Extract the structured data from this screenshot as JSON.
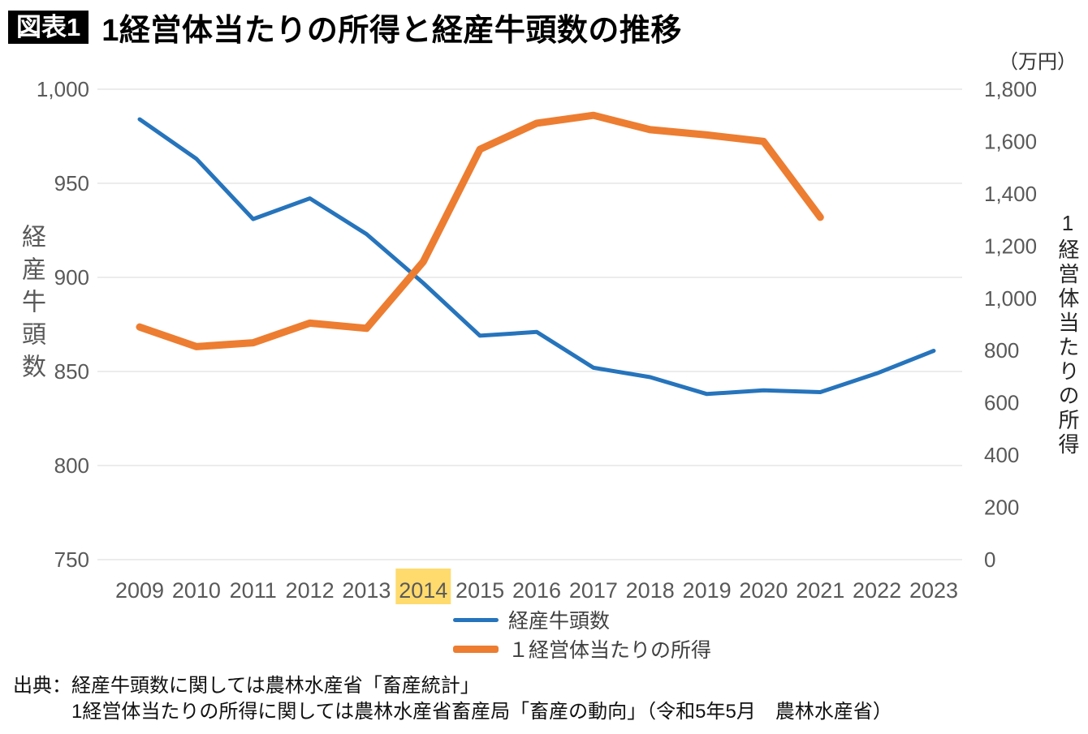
{
  "header": {
    "badge": "図表1",
    "title": "1経営体当たりの所得と経産牛頭数の推移"
  },
  "chart_data": {
    "type": "line",
    "categories": [
      "2009",
      "2010",
      "2011",
      "2012",
      "2013",
      "2014",
      "2015",
      "2016",
      "2017",
      "2018",
      "2019",
      "2020",
      "2021",
      "2022",
      "2023"
    ],
    "highlighted_category": "2014",
    "highlight_color": "#FFD966",
    "grid_color": "#D9D9D9",
    "series": [
      {
        "key": "cattle-count",
        "name": "経産牛頭数",
        "axis": "left",
        "color": "#2674BC",
        "stroke_width": 5,
        "values": [
          984,
          963,
          931,
          942,
          923,
          897,
          869,
          871,
          852,
          847,
          838,
          840,
          839,
          849,
          861
        ]
      },
      {
        "key": "income-per-farm",
        "name": "１経営体当たりの所得",
        "axis": "right",
        "color": "#ED7D31",
        "stroke_width": 9,
        "values": [
          890,
          815,
          830,
          905,
          885,
          1140,
          1570,
          1670,
          1700,
          1645,
          1625,
          1600,
          1310,
          null,
          null
        ]
      }
    ],
    "left_axis": {
      "title": "経産牛頭数",
      "min": 750,
      "max": 1000,
      "step": 50,
      "tick_labels": [
        "750",
        "800",
        "850",
        "900",
        "950",
        "1,000"
      ]
    },
    "right_axis": {
      "title": "1経営体当たりの所得",
      "unit": "（万円）",
      "min": 0,
      "max": 1800,
      "step": 200,
      "tick_labels": [
        "0",
        "200",
        "400",
        "600",
        "800",
        "1,000",
        "1,200",
        "1,400",
        "1,600",
        "1,800"
      ]
    },
    "legend_position": "bottom",
    "grid": true
  },
  "footer": {
    "source_line1": "出典：経産牛頭数に関しては農林水産省「畜産統計」",
    "source_line2": "1経営体当たりの所得に関しては農林水産省畜産局「畜産の動向」（令和5年5月　農林水産省）"
  }
}
